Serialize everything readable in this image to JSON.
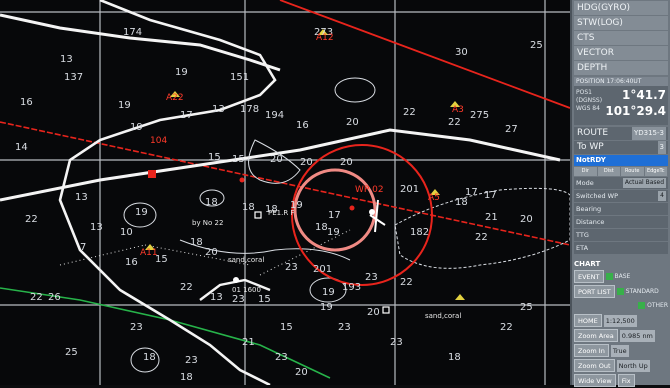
{
  "chart": {
    "depths": [
      {
        "t": "174"
      },
      {
        "t": "273"
      },
      {
        "t": "13"
      },
      {
        "t": "30"
      },
      {
        "t": "25"
      },
      {
        "t": "16"
      },
      {
        "t": "137"
      },
      {
        "t": "19"
      },
      {
        "t": "151"
      },
      {
        "t": "17"
      },
      {
        "t": "19"
      },
      {
        "t": "19"
      },
      {
        "t": "178"
      },
      {
        "t": "13"
      },
      {
        "t": "194"
      },
      {
        "t": "16"
      },
      {
        "t": "20"
      },
      {
        "t": "22"
      },
      {
        "t": "22"
      },
      {
        "t": "275"
      },
      {
        "t": "27"
      },
      {
        "t": "14"
      },
      {
        "t": "15"
      },
      {
        "t": "15"
      },
      {
        "t": "20"
      },
      {
        "t": "20"
      },
      {
        "t": "20"
      },
      {
        "t": "19"
      },
      {
        "t": "19"
      },
      {
        "t": "17"
      },
      {
        "t": "19"
      },
      {
        "t": "201"
      },
      {
        "t": "18"
      },
      {
        "t": "17"
      },
      {
        "t": "17"
      },
      {
        "t": "21"
      },
      {
        "t": "13"
      },
      {
        "t": "18"
      },
      {
        "t": "18"
      },
      {
        "t": "18"
      },
      {
        "t": "18"
      },
      {
        "t": "22"
      },
      {
        "t": "10"
      },
      {
        "t": "13"
      },
      {
        "t": "7"
      },
      {
        "t": "18"
      },
      {
        "t": "15"
      },
      {
        "t": "182"
      },
      {
        "t": "22"
      },
      {
        "t": "20"
      },
      {
        "t": "22"
      },
      {
        "t": "16"
      },
      {
        "t": "20"
      },
      {
        "t": "22"
      },
      {
        "t": "23"
      },
      {
        "t": "23"
      },
      {
        "t": "13"
      },
      {
        "t": "201"
      },
      {
        "t": "23"
      },
      {
        "t": "19"
      },
      {
        "t": "193"
      },
      {
        "t": "22"
      },
      {
        "t": "26"
      },
      {
        "t": "15"
      },
      {
        "t": "19"
      },
      {
        "t": "20"
      },
      {
        "t": "15"
      },
      {
        "t": "23"
      },
      {
        "t": "23"
      },
      {
        "t": "23"
      },
      {
        "t": "23"
      },
      {
        "t": "18"
      },
      {
        "t": "23"
      },
      {
        "t": "18"
      },
      {
        "t": "20"
      },
      {
        "t": "25"
      },
      {
        "t": "18"
      },
      {
        "t": "22"
      },
      {
        "t": "25"
      },
      {
        "t": "21"
      }
    ],
    "labels": {
      "sand_coral_1": "sand,coral",
      "sand_coral_2": "sand,coral",
      "by_no": "by No 22",
      "pe_label": "PE1.R F",
      "buoy_time": "01 1600",
      "wp_label": "WP 02",
      "course_104": "104",
      "a20": "A22",
      "a3": "A3",
      "a5": "A5",
      "a11": "A11",
      "a12": "A12"
    }
  },
  "panel": {
    "hdg_label": "HDG(GYRO)",
    "stw_label": "STW(LOG)",
    "cts_label": "CTS",
    "vector_label": "VECTOR",
    "depth_label": "DEPTH",
    "pos_header": "POSITION   17:06:40UT",
    "pos_tag1": "POS1",
    "pos_tag2": "(DGNSS)",
    "pos_tag3": "WGS 84",
    "lat": "1°41.7",
    "lon": "101°29.4",
    "route_label": "ROUTE",
    "route_value": "YD315-3",
    "towp_label": "To WP",
    "towp_value": "3",
    "status": "NotRDY",
    "tabs": [
      "Dir",
      "Dist",
      "Route",
      "EdgeTc"
    ],
    "mode_label": "Mode",
    "mode_value": "Actual Based",
    "sw_label": "Switched WP",
    "sw_value": "4",
    "bearing_label": "Bearing",
    "distance_label": "Distance",
    "ttg_label": "TTG",
    "eta_label": "ETA",
    "chart_label": "CHART",
    "event_btn": "EVENT",
    "base_legend": "BASE",
    "standard_legend": "STANDARD",
    "other_legend": "OTHER",
    "portlist_btn": "PORT LIST",
    "home_btn": "HOME",
    "scale_value": "1:12,500",
    "zoomarea_btn": "Zoom Area",
    "zoomarea_value": "0.985 nm",
    "zoomin_btn": "Zoom In",
    "zoomin_value": "True",
    "zoomout_btn": "Zoom Out",
    "zoomout_value": "North Up",
    "wideview_btn": "Wide View",
    "fix_btn": "Fix"
  }
}
